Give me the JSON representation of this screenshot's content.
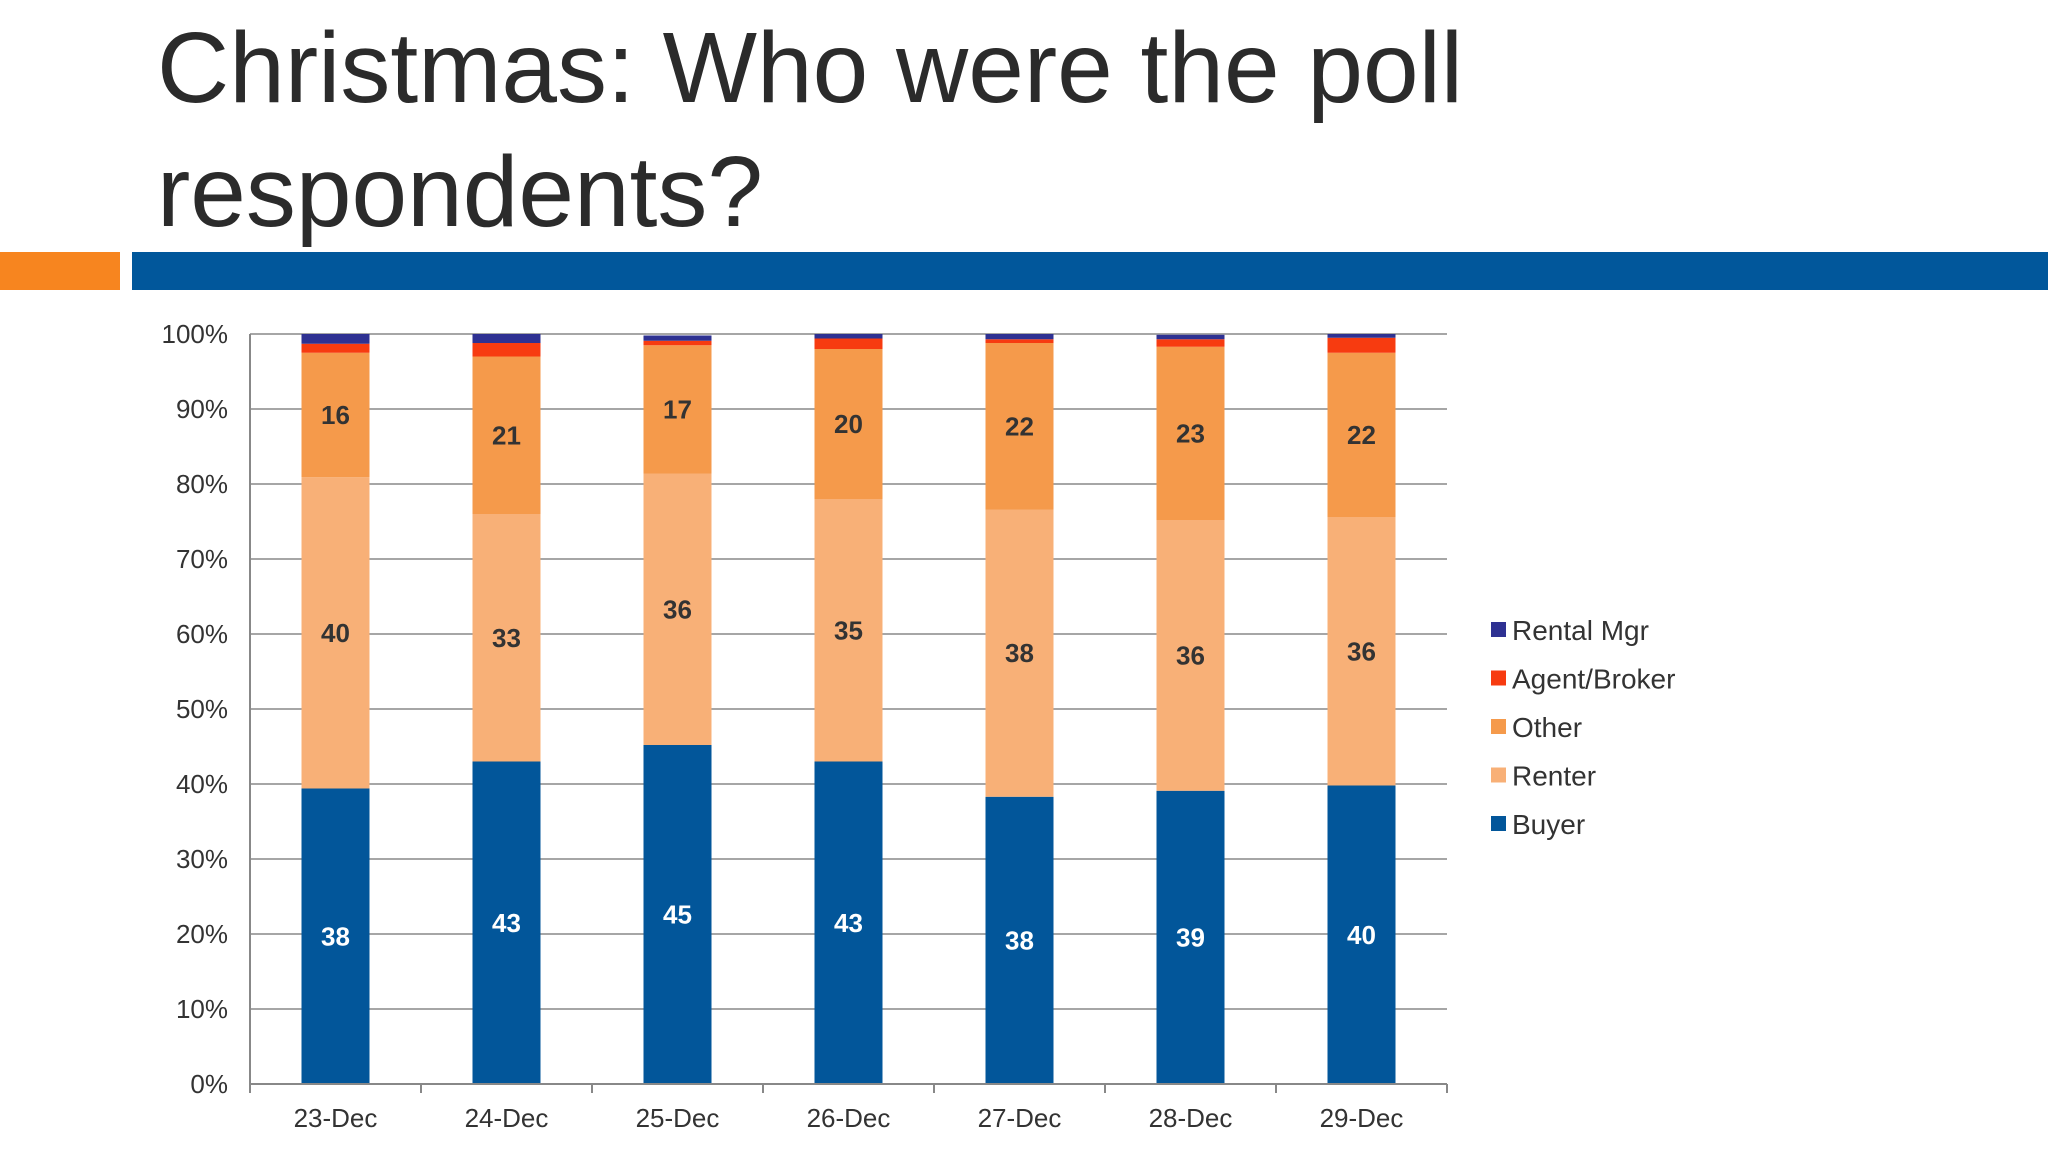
{
  "slide": {
    "title": "Christmas: Who were the poll respondents?"
  },
  "colors": {
    "accent_orange": "#f7851f",
    "accent_blue": "#01579b",
    "Buyer": "#02569a",
    "Renter": "#f8b077",
    "Other": "#f59a4b",
    "Agent/Broker": "#f73b10",
    "Rental Mgr": "#2e3192",
    "gridline": "#a6a6a6"
  },
  "chart_data": {
    "type": "bar",
    "stacked": true,
    "normalized": true,
    "categories": [
      "23-Dec",
      "24-Dec",
      "25-Dec",
      "26-Dec",
      "27-Dec",
      "28-Dec",
      "29-Dec"
    ],
    "ylim": [
      0,
      100
    ],
    "yticks": [
      "0%",
      "10%",
      "20%",
      "30%",
      "40%",
      "50%",
      "60%",
      "70%",
      "80%",
      "90%",
      "100%"
    ],
    "grid": true,
    "legend_position": "right",
    "series": [
      {
        "name": "Buyer",
        "values": [
          38,
          43,
          45,
          43,
          38,
          39,
          40
        ],
        "percent_of_total": [
          39.4,
          43.0,
          45.2,
          43.0,
          38.3,
          39.1,
          39.8
        ],
        "labeled": true
      },
      {
        "name": "Renter",
        "values": [
          40,
          33,
          36,
          35,
          38,
          36,
          36
        ],
        "percent_of_total": [
          41.5,
          33.0,
          36.2,
          35.0,
          38.3,
          36.1,
          35.8
        ],
        "labeled": true
      },
      {
        "name": "Other",
        "values": [
          16,
          21,
          17,
          20,
          22,
          23,
          22
        ],
        "percent_of_total": [
          16.6,
          21.0,
          17.1,
          20.0,
          22.2,
          23.1,
          21.9
        ],
        "labeled": true
      },
      {
        "name": "Agent/Broker",
        "values": [
          1.2,
          1.8,
          0.6,
          1.4,
          0.5,
          1.0,
          2.0
        ],
        "percent_of_total": [
          1.2,
          1.8,
          0.6,
          1.4,
          0.5,
          1.0,
          2.0
        ],
        "labeled": false
      },
      {
        "name": "Rental Mgr",
        "values": [
          1.3,
          1.2,
          0.7,
          0.6,
          0.7,
          0.6,
          0.5
        ],
        "percent_of_total": [
          1.3,
          1.2,
          0.7,
          0.6,
          0.7,
          0.6,
          0.5
        ],
        "labeled": false
      }
    ],
    "legend_order": [
      "Rental Mgr",
      "Agent/Broker",
      "Other",
      "Renter",
      "Buyer"
    ]
  }
}
